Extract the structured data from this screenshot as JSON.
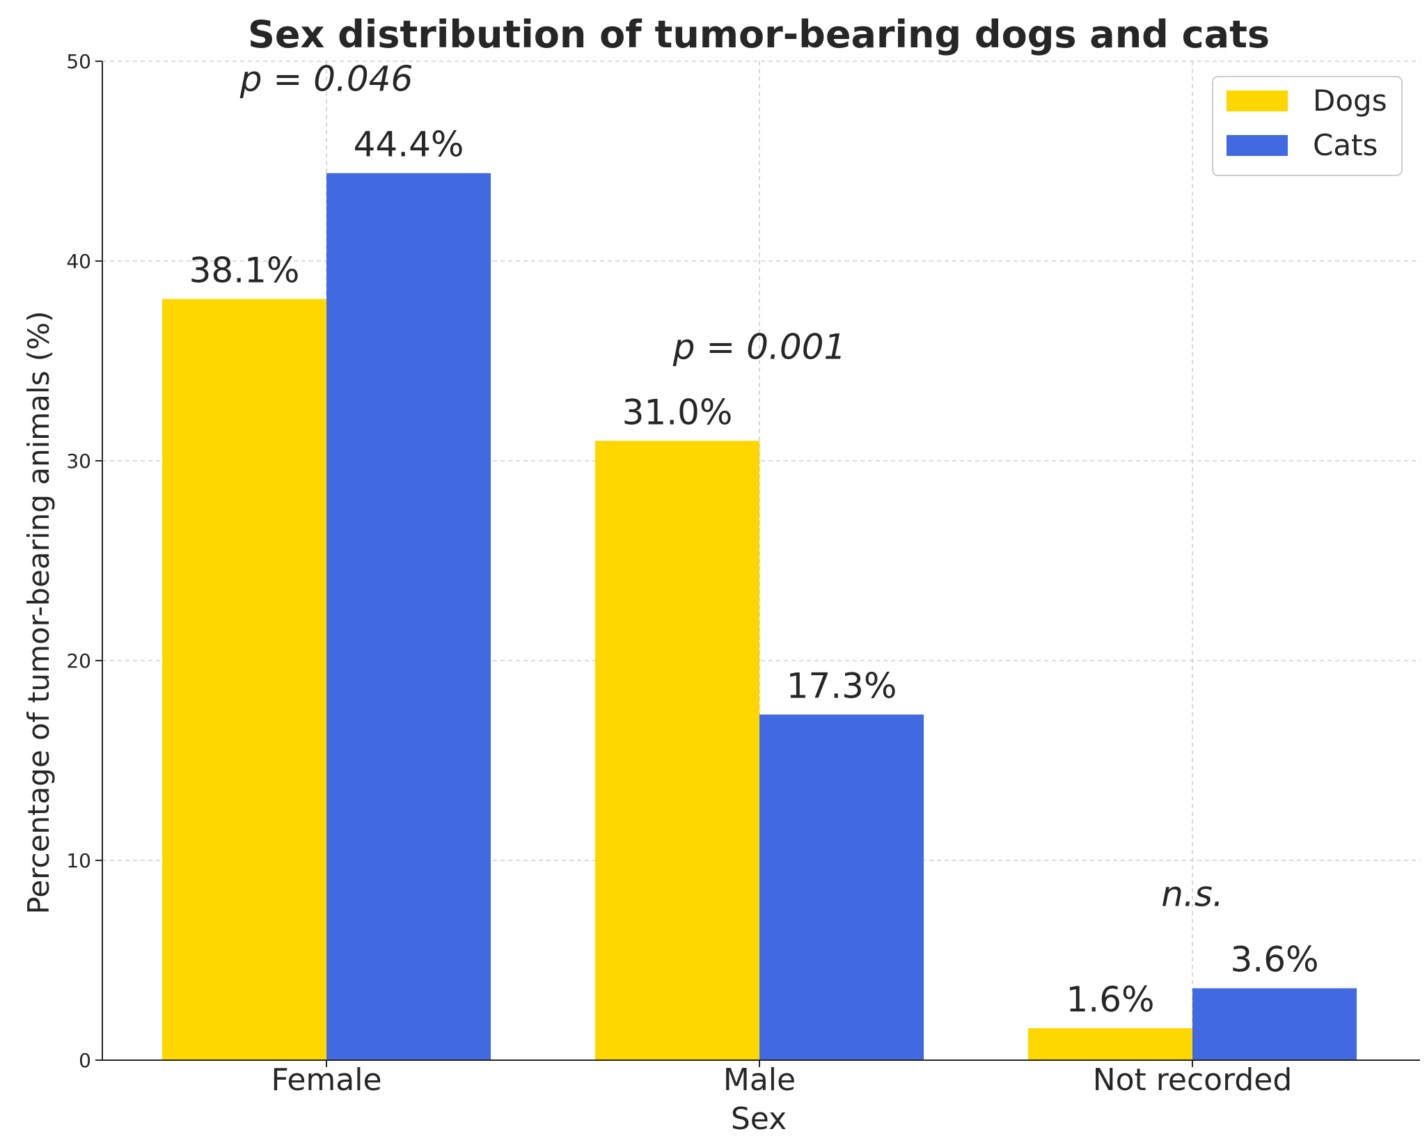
{
  "chart_data": {
    "type": "bar",
    "title": "Sex distribution of tumor-bearing dogs and cats",
    "xlabel": "Sex",
    "ylabel": "Percentage of tumor-bearing animals (%)",
    "categories": [
      "Female",
      "Male",
      "Not recorded"
    ],
    "series": [
      {
        "name": "Dogs",
        "color": "#FFD700",
        "values": [
          38.1,
          31.0,
          1.6
        ],
        "labels": [
          "38.1%",
          "31.0%",
          "1.6%"
        ]
      },
      {
        "name": "Cats",
        "color": "#4169E1",
        "values": [
          44.4,
          17.3,
          3.6
        ],
        "labels": [
          "44.4%",
          "17.3%",
          "3.6%"
        ]
      }
    ],
    "ylim": [
      0,
      50
    ],
    "yticks": [
      0,
      10,
      20,
      30,
      40,
      50
    ],
    "grid": true,
    "legend": "top-right",
    "annotations": [
      "p = 0.046",
      "p = 0.001",
      "n.s."
    ]
  }
}
